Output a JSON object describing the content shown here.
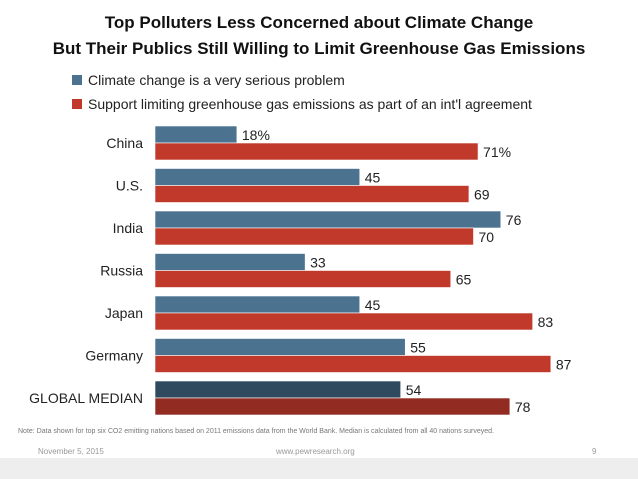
{
  "header": {
    "title_line1": "Top Polluters Less Concerned about Climate Change",
    "title_line2": "But Their Publics Still Willing to Limit Greenhouse Gas Emissions"
  },
  "chart_data": {
    "type": "bar",
    "orientation": "horizontal",
    "categories": [
      "China",
      "U.S.",
      "India",
      "Russia",
      "Japan",
      "Germany",
      "GLOBAL MEDIAN"
    ],
    "series": [
      {
        "name": "Climate change is a very serious problem",
        "values": [
          18,
          45,
          76,
          33,
          45,
          55,
          54
        ],
        "labels": [
          "18%",
          "45",
          "76",
          "33",
          "45",
          "55",
          "54"
        ],
        "color": "#4b7390",
        "median_color": "#2f4a5e"
      },
      {
        "name": "Support limiting greenhouse gas emissions as part of an int'l agreement",
        "values": [
          71,
          69,
          70,
          65,
          83,
          87,
          78
        ],
        "labels": [
          "71%",
          "69",
          "70",
          "65",
          "83",
          "87",
          "78"
        ],
        "color": "#c0392b",
        "median_color": "#922b21"
      }
    ],
    "xlim": [
      0,
      100
    ]
  },
  "note": "Note: Data shown for top six CO2 emitting nations based on 2011 emissions data from the World Bank. Median is calculated from all 40 nations surveyed.",
  "footer": {
    "date": "November 5, 2015",
    "url": "www.pewresearch.org",
    "page": "9"
  }
}
